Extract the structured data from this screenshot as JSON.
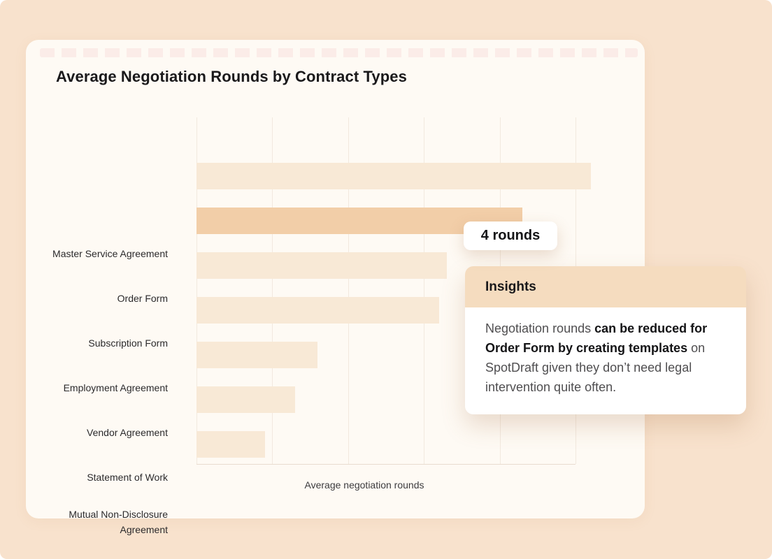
{
  "chart_data": {
    "type": "bar",
    "orientation": "horizontal",
    "title": "Average Negotiation Rounds by Contract Types",
    "categories": [
      "Master Service Agreement",
      "Order Form",
      "Subscription Form",
      "Employment Agreement",
      "Vendor Agreement",
      "Statement of Work",
      "Mutual Non-Disclosure Agreement"
    ],
    "values": [
      5.2,
      4.3,
      3.3,
      3.2,
      1.6,
      1.3,
      0.9
    ],
    "xlabel": "Average negotiation rounds",
    "xlim": [
      0,
      5
    ],
    "gridline_count": 6,
    "x_tick_labels_visible": false,
    "grid": "vertical only",
    "highlighted_category": "Order Form",
    "bar_color": "#F8E9D6",
    "highlight_color": "#F2CEA8"
  },
  "tooltip": {
    "label": "4 rounds",
    "attached_to": "Order Form"
  },
  "insights": {
    "header": "Insights",
    "body_segments": [
      {
        "text": "Negotiation rounds ",
        "bold": false
      },
      {
        "text": "can be reduced for Order Form by creating templates",
        "bold": true
      },
      {
        "text": " on SpotDraft given they don’t need legal intervention quite often.",
        "bold": false
      }
    ]
  },
  "colors": {
    "page_background": "#F8E2CD",
    "card_background": "#FEFAF4",
    "insights_header_background": "#F5DCBF",
    "bar_light": "#F8E9D6",
    "bar_highlight": "#F2CEA8"
  }
}
